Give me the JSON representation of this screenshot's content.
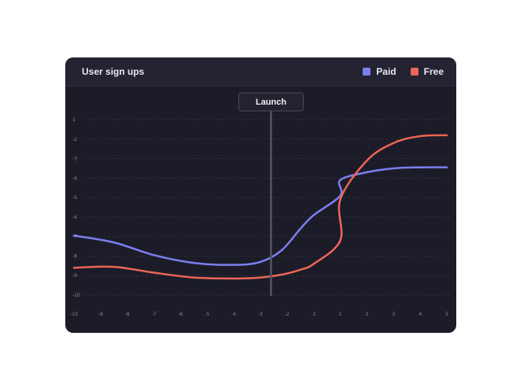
{
  "header": {
    "title": "User sign ups"
  },
  "legend": [
    {
      "label": "Paid",
      "color": "#7c7ff2"
    },
    {
      "label": "Free",
      "color": "#ee6655"
    }
  ],
  "chart_data": {
    "type": "line",
    "title": "User sign ups",
    "xlabel": "",
    "ylabel": "",
    "grid": true,
    "legend_position": "top-right",
    "x_ticks": [
      "-10",
      "-9",
      "-8",
      "-7",
      "-6",
      "-5",
      "-4",
      "-3",
      "-2",
      "-1",
      "1",
      "2",
      "3",
      "4",
      "5"
    ],
    "y_ticks": [
      "1",
      "-2",
      "-3",
      "-4",
      "-5",
      "-6",
      "-7",
      "-8",
      "-9",
      "-10"
    ],
    "x": [
      -10,
      -8.5,
      -7,
      -5.5,
      -4,
      -3,
      -2.2,
      -1.5,
      -1,
      0,
      1,
      2,
      3,
      4,
      5
    ],
    "series": [
      {
        "name": "Paid",
        "color": "#7c7ff2",
        "values": [
          -6.95,
          -7.3,
          -7.95,
          -8.35,
          -8.45,
          -8.3,
          -7.7,
          -6.6,
          -5.9,
          -4.9,
          -4.1,
          -3.7,
          -3.5,
          -3.45,
          -3.45
        ]
      },
      {
        "name": "Free",
        "color": "#ee6655",
        "values": [
          -8.6,
          -8.55,
          -8.85,
          -9.1,
          -9.15,
          -9.1,
          -8.95,
          -8.7,
          -8.4,
          -7.2,
          -5.1,
          -3.1,
          -2.2,
          -1.85,
          -1.8
        ]
      }
    ],
    "annotations": [
      {
        "label": "Launch",
        "x": -2.6
      }
    ]
  }
}
